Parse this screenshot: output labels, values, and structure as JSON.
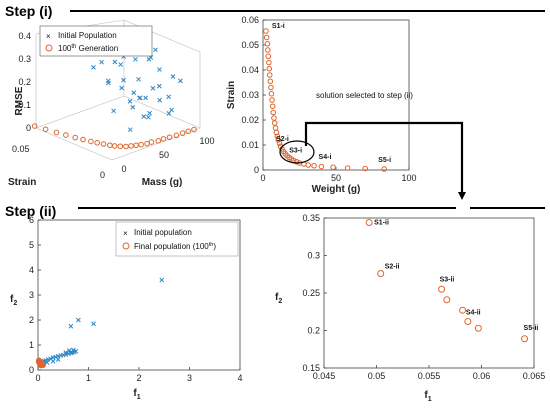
{
  "steps": {
    "step1": "Step (i)",
    "step2": "Step (ii)"
  },
  "colors": {
    "initial": "#2e86c8",
    "final": "#e0662d",
    "arrow": "#000000"
  },
  "panel_a": {
    "legend": [
      "Initial Population",
      "100",
      "th",
      " Generation"
    ],
    "zlabel": "RMSE",
    "xlabel": "Mass (g)",
    "ylabel": "Strain",
    "z_ticks": [
      "0",
      "0.1",
      "0.2",
      "0.3",
      "0.4"
    ],
    "mass_ticks": [
      "0",
      "50",
      "100"
    ],
    "strain_ticks": [
      "0.05",
      "0"
    ]
  },
  "panel_b": {
    "xlabel": "Weight (g)",
    "ylabel": "Strain",
    "annotation": "solution selected to step (ii)",
    "callouts": [
      "S1-i",
      "S2-i",
      "S3-i",
      "S4-i",
      "S5-i"
    ]
  },
  "panel_c": {
    "xlabel": "f",
    "xlabel_sub": "1",
    "ylabel": "f",
    "ylabel_sub": "2",
    "legend": [
      "Initial population",
      "Final population (100",
      "th",
      ")"
    ]
  },
  "panel_d": {
    "xlabel": "f",
    "xlabel_sub": "1",
    "ylabel": "f",
    "ylabel_sub": "2",
    "callouts": [
      "S1-ii",
      "S2-ii",
      "S3-ii",
      "S4-ii",
      "S5-ii"
    ]
  },
  "chart_data": [
    {
      "type": "scatter",
      "projection": "3d",
      "xlabel": "Mass (g)",
      "ylabel": "Strain",
      "zlabel": "RMSE",
      "xlim": [
        0,
        100
      ],
      "ylim": [
        0,
        0.05
      ],
      "zlim": [
        0,
        0.4
      ],
      "series": [
        {
          "name": "Initial Population",
          "marker": "x",
          "points": [
            [
              40,
              0.03,
              0.28
            ],
            [
              45,
              0.035,
              0.31
            ],
            [
              50,
              0.025,
              0.34
            ],
            [
              55,
              0.038,
              0.29
            ],
            [
              60,
              0.02,
              0.32
            ],
            [
              65,
              0.03,
              0.27
            ],
            [
              70,
              0.015,
              0.3
            ],
            [
              75,
              0.028,
              0.25
            ],
            [
              80,
              0.022,
              0.26
            ],
            [
              85,
              0.018,
              0.22
            ],
            [
              90,
              0.012,
              0.2
            ],
            [
              95,
              0.01,
              0.18
            ],
            [
              42,
              0.018,
              0.2
            ],
            [
              48,
              0.04,
              0.22
            ],
            [
              52,
              0.012,
              0.16
            ],
            [
              58,
              0.026,
              0.19
            ],
            [
              62,
              0.034,
              0.24
            ],
            [
              68,
              0.008,
              0.14
            ],
            [
              72,
              0.036,
              0.21
            ],
            [
              78,
              0.014,
              0.17
            ],
            [
              82,
              0.03,
              0.15
            ],
            [
              88,
              0.024,
              0.12
            ],
            [
              92,
              0.016,
              0.1
            ],
            [
              55,
              0.02,
              0.12
            ],
            [
              60,
              0.01,
              0.09
            ],
            [
              65,
              0.04,
              0.13
            ],
            [
              70,
              0.022,
              0.11
            ],
            [
              75,
              0.006,
              0.08
            ],
            [
              80,
              0.032,
              0.09
            ],
            [
              85,
              0.01,
              0.07
            ],
            [
              50,
              0.005,
              0.1
            ],
            [
              45,
              0.025,
              0.08
            ],
            [
              62,
              0.015,
              0.06
            ],
            [
              72,
              0.028,
              0.05
            ],
            [
              90,
              0.03,
              0.06
            ],
            [
              38,
              0.01,
              0.05
            ],
            [
              58,
              0.036,
              0.16
            ],
            [
              66,
              0.018,
              0.36
            ],
            [
              74,
              0.042,
              0.33
            ],
            [
              84,
              0.02,
              0.3
            ]
          ]
        },
        {
          "name": "100th Generation",
          "marker": "o",
          "points": [
            [
              2,
              0.052,
              0
            ],
            [
              4,
              0.046,
              0
            ],
            [
              6,
              0.04,
              0
            ],
            [
              8,
              0.035,
              0
            ],
            [
              10,
              0.03,
              0
            ],
            [
              12,
              0.026,
              0
            ],
            [
              14,
              0.022,
              0
            ],
            [
              16,
              0.019,
              0
            ],
            [
              18,
              0.016,
              0
            ],
            [
              20,
              0.013,
              0
            ],
            [
              22,
              0.011,
              0
            ],
            [
              25,
              0.009,
              0
            ],
            [
              28,
              0.007,
              0
            ],
            [
              32,
              0.006,
              0
            ],
            [
              36,
              0.005,
              0
            ],
            [
              40,
              0.004,
              0
            ],
            [
              45,
              0.003,
              0
            ],
            [
              50,
              0.003,
              0
            ],
            [
              56,
              0.002,
              0
            ],
            [
              62,
              0.002,
              0
            ],
            [
              68,
              0.0015,
              0
            ],
            [
              75,
              0.001,
              0
            ],
            [
              82,
              0.001,
              0
            ],
            [
              88,
              0.0008,
              0
            ],
            [
              94,
              0.0005,
              0
            ]
          ]
        }
      ]
    },
    {
      "type": "scatter",
      "xlabel": "Weight (g)",
      "ylabel": "Strain",
      "xlim": [
        0,
        100
      ],
      "ylim": [
        0,
        0.06
      ],
      "xticks": [
        0,
        50,
        100
      ],
      "yticks": [
        0,
        0.01,
        0.02,
        0.03,
        0.04,
        0.05,
        0.06
      ],
      "series": [
        {
          "name": "100th Generation",
          "marker": "o",
          "points": [
            [
              2.0,
              0.0556
            ],
            [
              2.5,
              0.053
            ],
            [
              3.0,
              0.0505
            ],
            [
              3.3,
              0.048
            ],
            [
              3.6,
              0.0455
            ],
            [
              4.0,
              0.043
            ],
            [
              4.3,
              0.0405
            ],
            [
              4.6,
              0.038
            ],
            [
              5.0,
              0.0355
            ],
            [
              5.4,
              0.033
            ],
            [
              5.8,
              0.0305
            ],
            [
              6.2,
              0.028
            ],
            [
              6.6,
              0.0255
            ],
            [
              7.0,
              0.023
            ],
            [
              7.5,
              0.0208
            ],
            [
              8.0,
              0.0188
            ],
            [
              8.6,
              0.0168
            ],
            [
              9.2,
              0.015
            ],
            [
              9.8,
              0.0135
            ],
            [
              10.5,
              0.012
            ],
            [
              11.3,
              0.0107
            ],
            [
              12.0,
              0.0095
            ],
            [
              13.0,
              0.0084
            ],
            [
              14.0,
              0.0074
            ],
            [
              15.2,
              0.0065
            ],
            [
              16.5,
              0.0057
            ],
            [
              18.0,
              0.005
            ],
            [
              19.5,
              0.0044
            ],
            [
              21.0,
              0.0038
            ],
            [
              23.0,
              0.0033
            ],
            [
              25.0,
              0.0028
            ],
            [
              28.0,
              0.0024
            ],
            [
              31.0,
              0.002
            ],
            [
              35.0,
              0.0017
            ],
            [
              40.0,
              0.0014
            ],
            [
              48.0,
              0.0011
            ],
            [
              58.0,
              0.0008
            ],
            [
              70.0,
              0.0006
            ],
            [
              83.0,
              0.0004
            ]
          ]
        }
      ],
      "labels": [
        {
          "text": "S1-i",
          "x": 2.0,
          "y": 0.0556
        },
        {
          "text": "S2-i",
          "x": 13.0,
          "y": 0.0084
        },
        {
          "text": "S3-i",
          "x": 20.0,
          "y": 0.0042
        },
        {
          "text": "S4-i",
          "x": 36.0,
          "y": 0.0017
        },
        {
          "text": "S5-i",
          "x": 83.0,
          "y": 0.0004
        }
      ]
    },
    {
      "type": "scatter",
      "xlabel": "f1",
      "ylabel": "f2",
      "xlim": [
        0,
        4
      ],
      "ylim": [
        0,
        6
      ],
      "xticks": [
        0,
        1,
        2,
        3,
        4
      ],
      "yticks": [
        0,
        1,
        2,
        3,
        4,
        5,
        6
      ],
      "series": [
        {
          "name": "Initial population",
          "marker": "x",
          "points": [
            [
              2.45,
              3.6
            ],
            [
              0.8,
              2.0
            ],
            [
              1.1,
              1.85
            ],
            [
              0.65,
              1.75
            ],
            [
              0.7,
              0.8
            ],
            [
              0.75,
              0.75
            ],
            [
              0.72,
              0.72
            ],
            [
              0.68,
              0.7
            ],
            [
              0.65,
              0.68
            ],
            [
              0.6,
              0.65
            ],
            [
              0.55,
              0.62
            ],
            [
              0.5,
              0.6
            ],
            [
              0.45,
              0.58
            ],
            [
              0.4,
              0.55
            ],
            [
              0.35,
              0.52
            ],
            [
              0.3,
              0.5
            ],
            [
              0.25,
              0.45
            ],
            [
              0.2,
              0.42
            ],
            [
              0.15,
              0.38
            ],
            [
              0.12,
              0.35
            ],
            [
              0.1,
              0.33
            ],
            [
              0.3,
              0.35
            ],
            [
              0.4,
              0.42
            ],
            [
              0.55,
              0.7
            ],
            [
              0.62,
              0.78
            ],
            [
              0.18,
              0.3
            ]
          ]
        },
        {
          "name": "Final population (100th)",
          "marker": "o",
          "points": [
            [
              0.02,
              0.32
            ],
            [
              0.025,
              0.3
            ],
            [
              0.03,
              0.28
            ],
            [
              0.035,
              0.26
            ],
            [
              0.04,
              0.24
            ],
            [
              0.045,
              0.22
            ],
            [
              0.05,
              0.21
            ],
            [
              0.055,
              0.2
            ],
            [
              0.06,
              0.19
            ],
            [
              0.065,
              0.19
            ],
            [
              0.02,
              0.35
            ],
            [
              0.03,
              0.34
            ],
            [
              0.02,
              0.38
            ],
            [
              0.04,
              0.3
            ],
            [
              0.05,
              0.27
            ],
            [
              0.06,
              0.25
            ],
            [
              0.07,
              0.23
            ],
            [
              0.08,
              0.22
            ],
            [
              0.09,
              0.21
            ],
            [
              0.1,
              0.2
            ]
          ]
        }
      ]
    },
    {
      "type": "scatter",
      "xlabel": "f1",
      "ylabel": "f2",
      "xlim": [
        0.045,
        0.065
      ],
      "ylim": [
        0.15,
        0.35
      ],
      "xticks": [
        0.045,
        0.05,
        0.055,
        0.06,
        0.065
      ],
      "yticks": [
        0.15,
        0.2,
        0.25,
        0.3,
        0.35
      ],
      "series": [
        {
          "name": "Final population (100th)",
          "marker": "o",
          "points": [
            [
              0.0493,
              0.344
            ],
            [
              0.0504,
              0.276
            ],
            [
              0.0562,
              0.255
            ],
            [
              0.0567,
              0.241
            ],
            [
              0.0582,
              0.227
            ],
            [
              0.0587,
              0.212
            ],
            [
              0.0597,
              0.203
            ],
            [
              0.0641,
              0.189
            ]
          ]
        }
      ],
      "labels": [
        {
          "text": "S1-ii",
          "x": 0.0493,
          "y": 0.344
        },
        {
          "text": "S2-ii",
          "x": 0.0504,
          "y": 0.276
        },
        {
          "text": "S3-ii",
          "x": 0.0562,
          "y": 0.255
        },
        {
          "text": "S4-ii",
          "x": 0.0587,
          "y": 0.212
        },
        {
          "text": "S5-ii",
          "x": 0.0641,
          "y": 0.189
        }
      ]
    }
  ]
}
